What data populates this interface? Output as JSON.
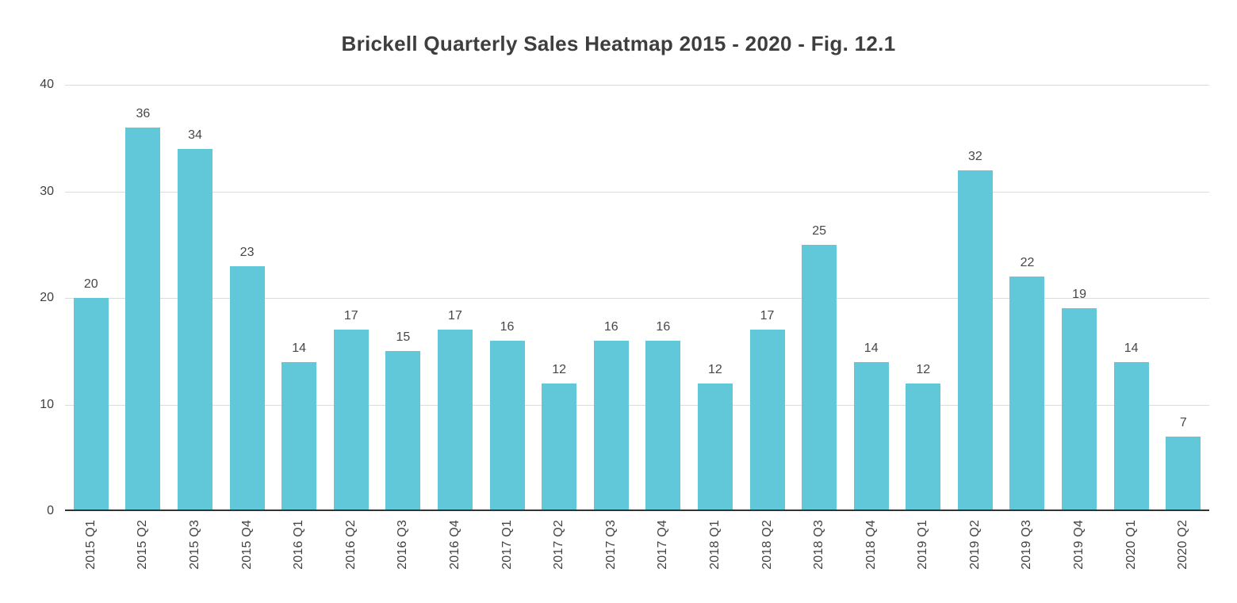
{
  "chart_data": {
    "type": "bar",
    "title": "Brickell Quarterly Sales Heatmap 2015 - 2020 - Fig. 12.1",
    "categories": [
      "2015 Q1",
      "2015 Q2",
      "2015 Q3",
      "2015 Q4",
      "2016 Q1",
      "2016 Q2",
      "2016 Q3",
      "2016 Q4",
      "2017 Q1",
      "2017 Q2",
      "2017 Q3",
      "2017 Q4",
      "2018 Q1",
      "2018 Q2",
      "2018 Q3",
      "2018 Q4",
      "2019 Q1",
      "2019 Q2",
      "2019 Q3",
      "2019 Q4",
      "2020 Q1",
      "2020 Q2"
    ],
    "values": [
      20,
      36,
      34,
      23,
      14,
      17,
      15,
      17,
      16,
      12,
      16,
      16,
      12,
      17,
      25,
      14,
      12,
      32,
      22,
      19,
      14,
      7
    ],
    "xlabel": "",
    "ylabel": "",
    "ylim": [
      0,
      40
    ],
    "yticks": [
      0,
      10,
      20,
      30,
      40
    ],
    "grid": true,
    "legend": "none",
    "bar_color": "#61C8DA",
    "gridline_color": "#dcdcdc",
    "axis_line_color": "#333333",
    "title_color": "#3e3e3e",
    "label_color": "#424242"
  }
}
